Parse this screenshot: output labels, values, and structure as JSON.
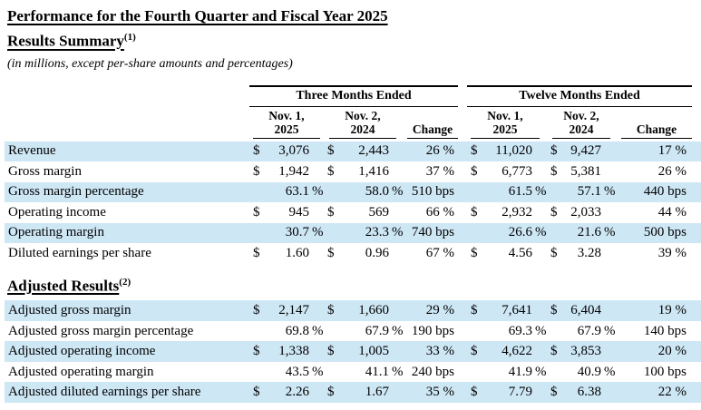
{
  "doc": {
    "title": "Performance for the Fourth Quarter and Fiscal Year 2025",
    "units_note": "(in millions, except per-share amounts and percentages)",
    "section_summary_heading": "Results Summary",
    "section_summary_footnote": "(1)",
    "section_adjusted_heading": "Adjusted Results",
    "section_adjusted_footnote": "(2)"
  },
  "table": {
    "highlight_color": "#CEE7F5",
    "group_headers": [
      "Three Months Ended",
      "Twelve Months Ended"
    ],
    "col_headers": [
      [
        "Nov. 1,",
        "2025"
      ],
      [
        "Nov. 2,",
        "2024"
      ],
      [
        "Change"
      ],
      [
        "Nov. 1,",
        "2025"
      ],
      [
        "Nov. 2,",
        "2024"
      ],
      [
        "Change"
      ]
    ],
    "rows_summary": [
      {
        "label": "Revenue",
        "hl": true,
        "cells": [
          {
            "p": "$",
            "v": "3,076"
          },
          {
            "p": "$",
            "v": "2,443"
          },
          {
            "v": "26",
            "s": "%"
          },
          {
            "p": "$",
            "v": "11,020"
          },
          {
            "p": "$",
            "v": "9,427"
          },
          {
            "v": "17",
            "s": "%"
          }
        ]
      },
      {
        "label": "Gross margin",
        "hl": false,
        "cells": [
          {
            "p": "$",
            "v": "1,942"
          },
          {
            "p": "$",
            "v": "1,416"
          },
          {
            "v": "37",
            "s": "%"
          },
          {
            "p": "$",
            "v": "6,773"
          },
          {
            "p": "$",
            "v": "5,381"
          },
          {
            "v": "26",
            "s": "%"
          }
        ]
      },
      {
        "label": "Gross margin percentage",
        "hl": true,
        "cells": [
          {
            "v": "63.1",
            "s": "%"
          },
          {
            "v": "58.0",
            "s": "%"
          },
          {
            "v": "510",
            "s": "bps"
          },
          {
            "v": "61.5",
            "s": "%"
          },
          {
            "v": "57.1",
            "s": "%"
          },
          {
            "v": "440",
            "s": "bps"
          }
        ]
      },
      {
        "label": "Operating income",
        "hl": false,
        "cells": [
          {
            "p": "$",
            "v": "945"
          },
          {
            "p": "$",
            "v": "569"
          },
          {
            "v": "66",
            "s": "%"
          },
          {
            "p": "$",
            "v": "2,932"
          },
          {
            "p": "$",
            "v": "2,033"
          },
          {
            "v": "44",
            "s": "%"
          }
        ]
      },
      {
        "label": "Operating margin",
        "hl": true,
        "cells": [
          {
            "v": "30.7",
            "s": "%"
          },
          {
            "v": "23.3",
            "s": "%"
          },
          {
            "v": "740",
            "s": "bps"
          },
          {
            "v": "26.6",
            "s": "%"
          },
          {
            "v": "21.6",
            "s": "%"
          },
          {
            "v": "500",
            "s": "bps"
          }
        ]
      },
      {
        "label": "Diluted earnings per share",
        "hl": false,
        "cells": [
          {
            "p": "$",
            "v": "1.60"
          },
          {
            "p": "$",
            "v": "0.96"
          },
          {
            "v": "67",
            "s": "%"
          },
          {
            "p": "$",
            "v": "4.56"
          },
          {
            "p": "$",
            "v": "3.28"
          },
          {
            "v": "39",
            "s": "%"
          }
        ]
      }
    ],
    "rows_adjusted": [
      {
        "label": "Adjusted gross margin",
        "hl": true,
        "cells": [
          {
            "p": "$",
            "v": "2,147"
          },
          {
            "p": "$",
            "v": "1,660"
          },
          {
            "v": "29",
            "s": "%"
          },
          {
            "p": "$",
            "v": "7,641"
          },
          {
            "p": "$",
            "v": "6,404"
          },
          {
            "v": "19",
            "s": "%"
          }
        ]
      },
      {
        "label": "Adjusted gross margin percentage",
        "hl": false,
        "cells": [
          {
            "v": "69.8",
            "s": "%"
          },
          {
            "v": "67.9",
            "s": "%"
          },
          {
            "v": "190",
            "s": "bps"
          },
          {
            "v": "69.3",
            "s": "%"
          },
          {
            "v": "67.9",
            "s": "%"
          },
          {
            "v": "140",
            "s": "bps"
          }
        ]
      },
      {
        "label": "Adjusted operating income",
        "hl": true,
        "cells": [
          {
            "p": "$",
            "v": "1,338"
          },
          {
            "p": "$",
            "v": "1,005"
          },
          {
            "v": "33",
            "s": "%"
          },
          {
            "p": "$",
            "v": "4,622"
          },
          {
            "p": "$",
            "v": "3,853"
          },
          {
            "v": "20",
            "s": "%"
          }
        ]
      },
      {
        "label": "Adjusted operating margin",
        "hl": false,
        "cells": [
          {
            "v": "43.5",
            "s": "%"
          },
          {
            "v": "41.1",
            "s": "%"
          },
          {
            "v": "240",
            "s": "bps"
          },
          {
            "v": "41.9",
            "s": "%"
          },
          {
            "v": "40.9",
            "s": "%"
          },
          {
            "v": "100",
            "s": "bps"
          }
        ]
      },
      {
        "label": "Adjusted diluted earnings per share",
        "hl": true,
        "cells": [
          {
            "p": "$",
            "v": "2.26"
          },
          {
            "p": "$",
            "v": "1.67"
          },
          {
            "v": "35",
            "s": "%"
          },
          {
            "p": "$",
            "v": "7.79"
          },
          {
            "p": "$",
            "v": "6.38"
          },
          {
            "v": "22",
            "s": "%"
          }
        ]
      }
    ]
  }
}
